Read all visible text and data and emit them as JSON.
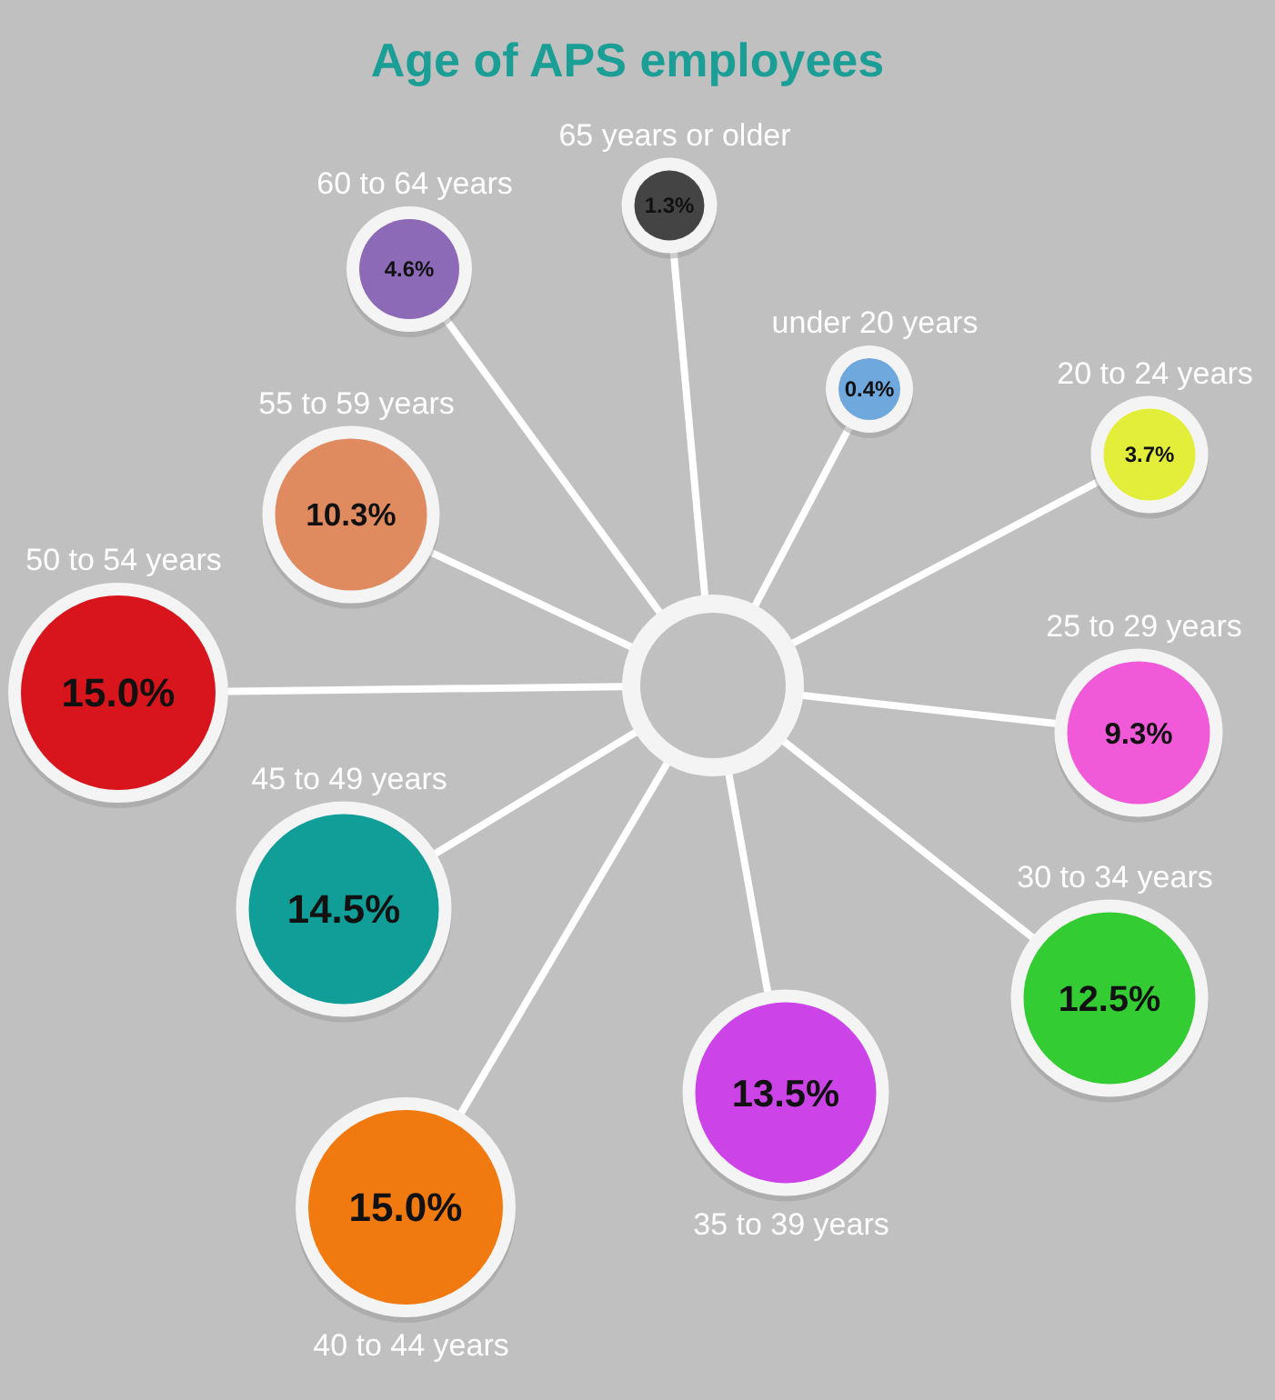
{
  "chart_data": {
    "type": "other",
    "title": "Age of APS employees",
    "categories": [
      "under 20 years",
      "20 to 24 years",
      "25 to 29 years",
      "30 to 34 years",
      "35 to 39 years",
      "40 to 44 years",
      "45 to 49 years",
      "50 to 54 years",
      "55 to 59 years",
      "60 to 64 years",
      "65 years or older"
    ],
    "values": [
      0.4,
      3.7,
      9.3,
      12.5,
      13.5,
      15.0,
      14.5,
      15.0,
      10.3,
      4.6,
      1.3
    ],
    "value_labels": [
      "0.4%",
      "3.7%",
      "9.3%",
      "12.5%",
      "13.5%",
      "15.0%",
      "14.5%",
      "15.0%",
      "10.3%",
      "4.6%",
      "1.3%"
    ],
    "colors": [
      "#6fa8dc",
      "#e3ee3a",
      "#f05ad8",
      "#33cc33",
      "#cc44e8",
      "#f07a10",
      "#119e98",
      "#d8141c",
      "#e08a60",
      "#8d6ab8",
      "#444444"
    ]
  }
}
